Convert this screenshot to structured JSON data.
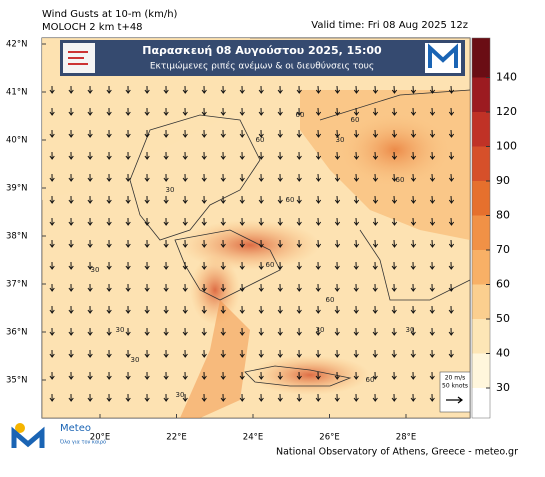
{
  "header": {
    "title": "Wind Gusts at 10-m (km/h)",
    "model": "MOLOCH 2 km t+48",
    "valid_time": "Valid time: Fri 08 Aug 2025 12z"
  },
  "banner": {
    "line1": "Παρασκευή 08 Αυγούστου 2025, 15:00",
    "line2": "Εκτιμώμενες ριπές ανέμων & οι διευθύνσεις τους"
  },
  "map": {
    "lat_labels": [
      "42°N",
      "41°N",
      "40°N",
      "39°N",
      "38°N",
      "37°N",
      "36°N",
      "35°N"
    ],
    "lon_labels": [
      "20°E",
      "22°E",
      "24°E",
      "26°E",
      "28°E"
    ],
    "contour_labels": [
      "30",
      "60",
      "60",
      "30",
      "60",
      "30",
      "60",
      "30",
      "60",
      "60",
      "30",
      "60",
      "30",
      "60",
      "30",
      "30"
    ]
  },
  "colorbar": {
    "levels": [
      30,
      40,
      50,
      60,
      70,
      80,
      90,
      100,
      120,
      140
    ],
    "colors": [
      "#ffffff",
      "#fff6dc",
      "#fde6b6",
      "#fbcf8f",
      "#f8b066",
      "#f19146",
      "#e6702d",
      "#d6502a",
      "#c03226",
      "#9c1b20",
      "#6a0d14"
    ]
  },
  "vector_key": {
    "speed": "20 m/s",
    "knots": "50 knots"
  },
  "logo": {
    "name": "Meteo",
    "tagline": "Όλα για τον καιρό"
  },
  "footer": "National Observatory of Athens, Greece - meteo.gr"
}
